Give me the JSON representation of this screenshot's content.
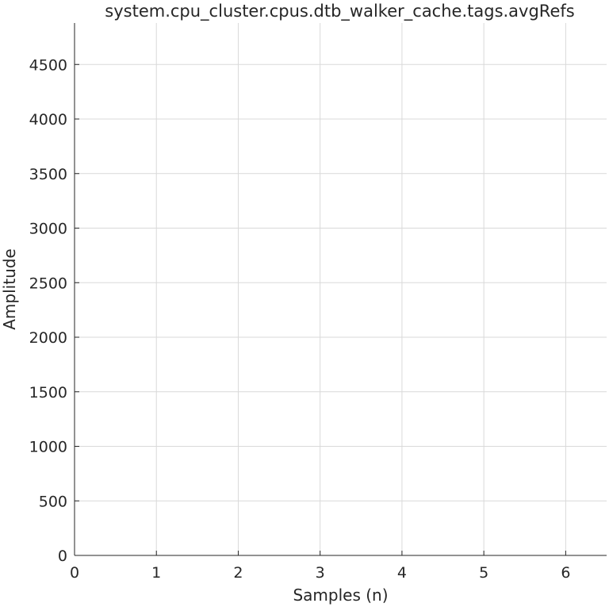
{
  "chart_data": {
    "type": "line",
    "title": "system.cpu_cluster.cpus.dtb_walker_cache.tags.avgRefs",
    "xlabel": "Samples (n)",
    "ylabel": "Amplitude",
    "xlim": [
      0,
      6.5
    ],
    "ylim": [
      0,
      4880
    ],
    "xticks": [
      0,
      1,
      2,
      3,
      4,
      5,
      6
    ],
    "yticks": [
      0,
      500,
      1000,
      1500,
      2000,
      2500,
      3000,
      3500,
      4000,
      4500
    ],
    "grid": true,
    "series": []
  }
}
